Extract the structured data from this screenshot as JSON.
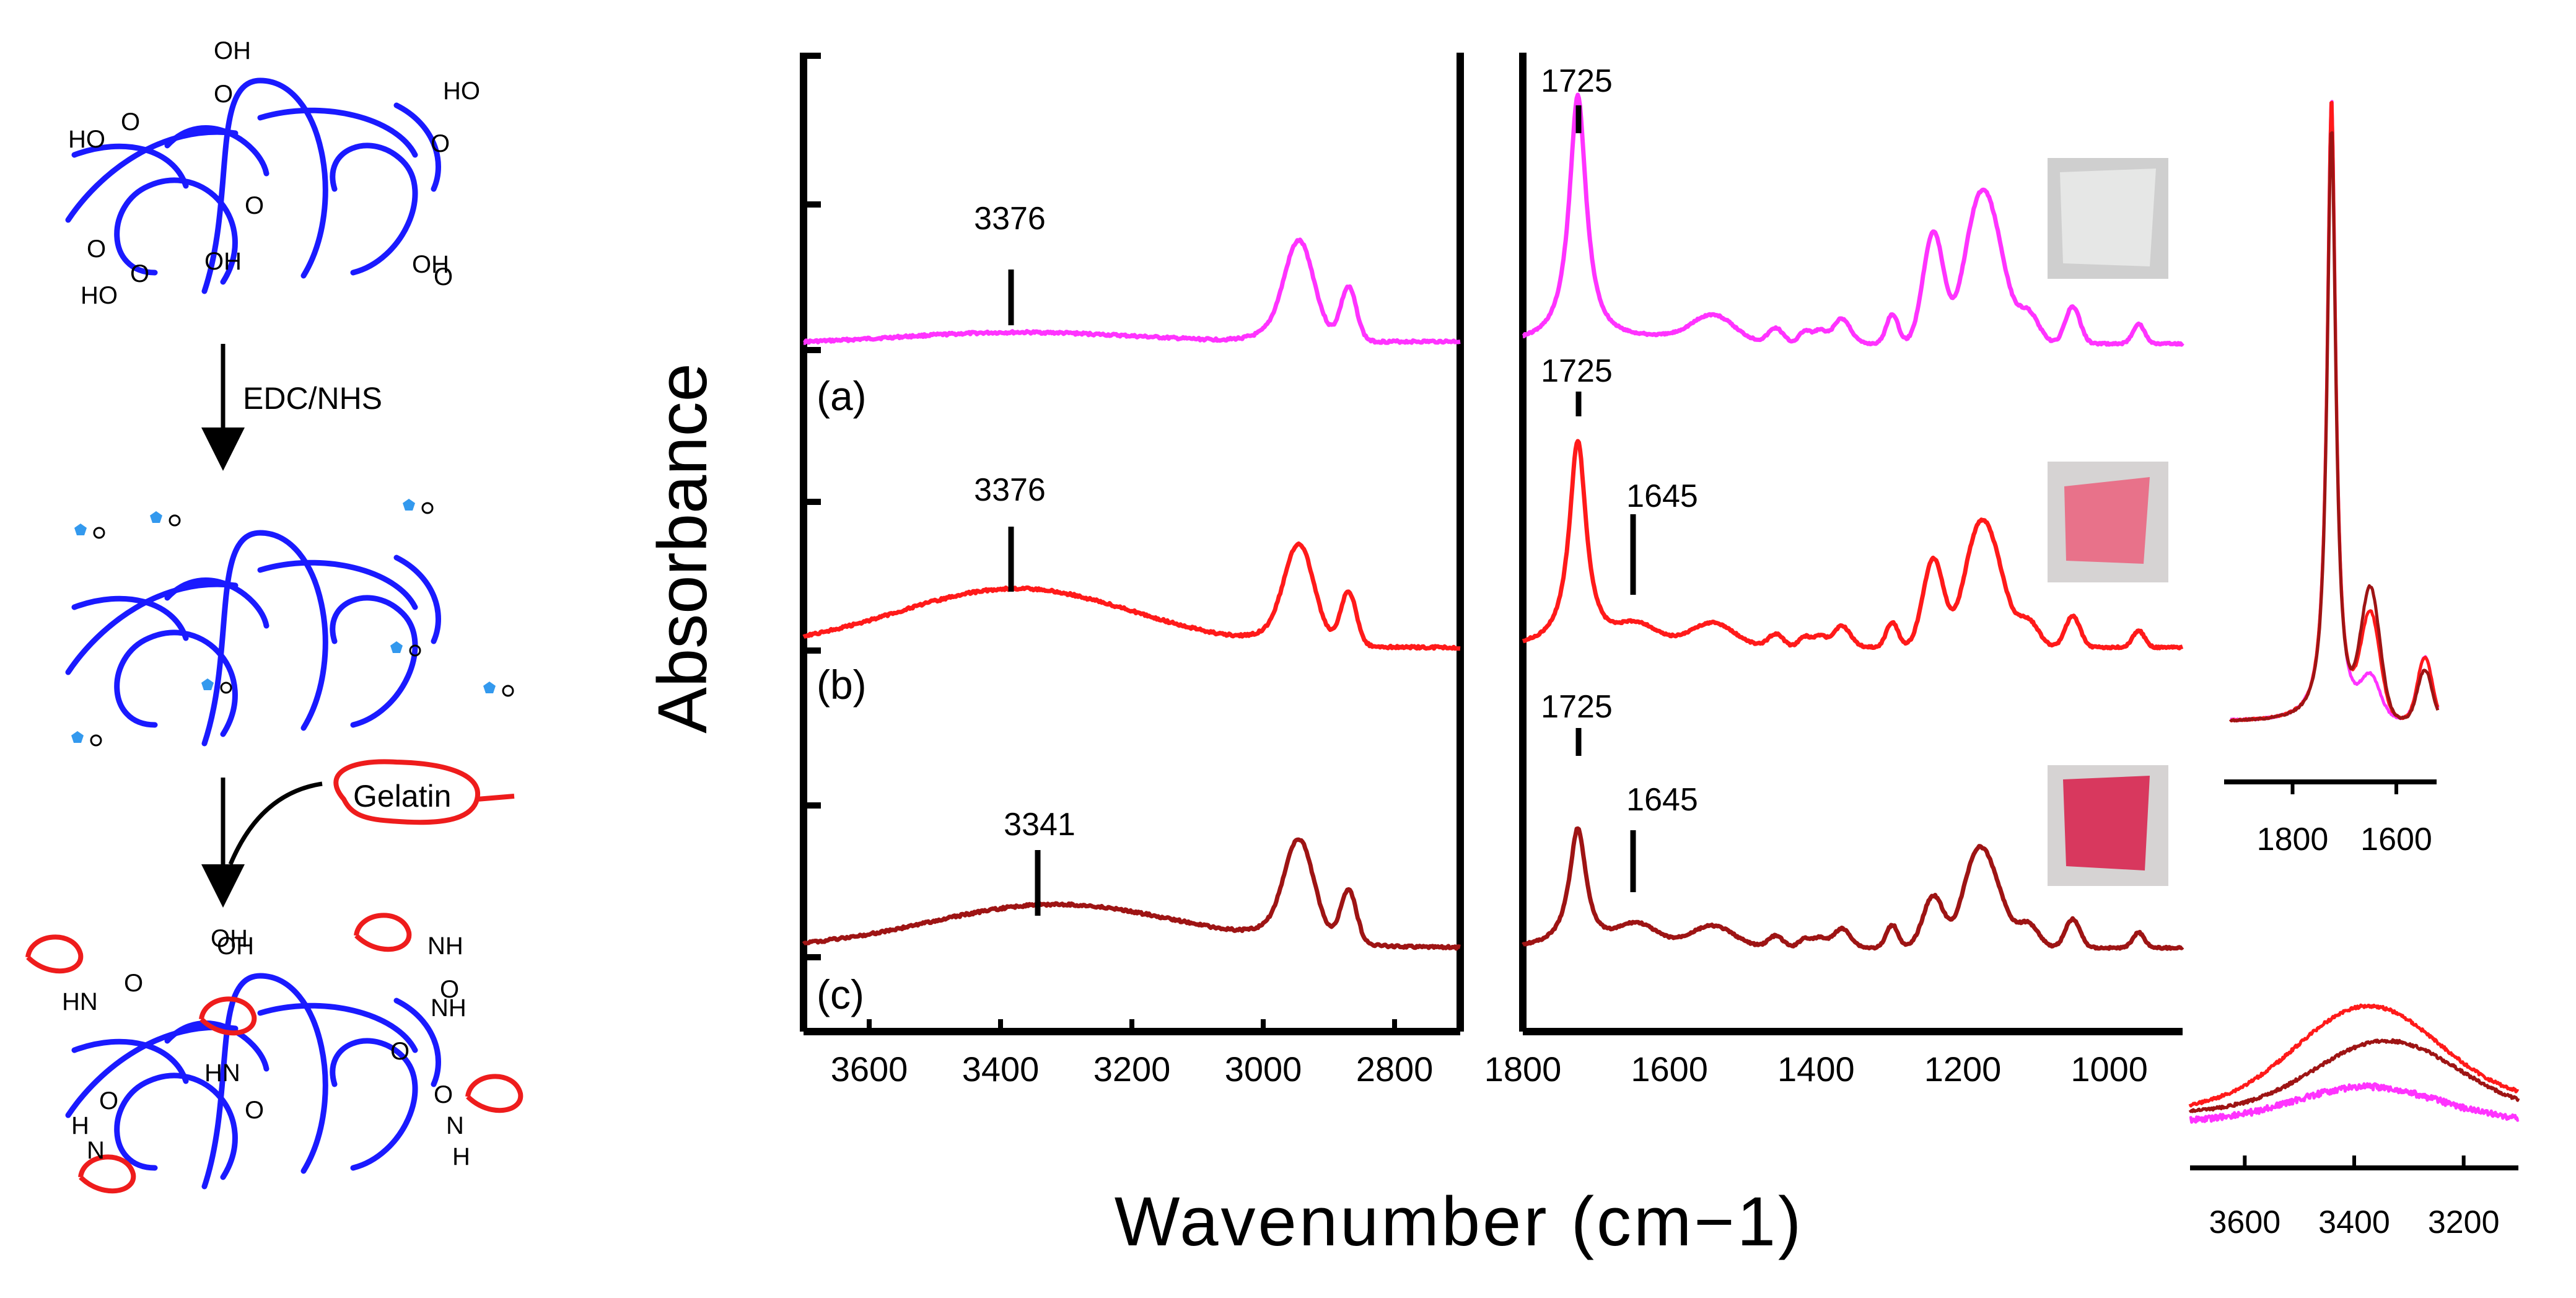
{
  "colors": {
    "trace_a": "#ff33ff",
    "trace_b": "#ff1a1a",
    "trace_c": "#9e1414",
    "polymer": "#1a1aff",
    "gelatin": "#ee1c1c",
    "ester_group": "#3399ee"
  },
  "scheme": {
    "step1_label": "EDC/NHS",
    "step2_label": "Gelatin",
    "group_labels": {
      "carboxyl": [
        "HO",
        "O",
        "OH",
        "O",
        "HO",
        "O",
        "O",
        "OH",
        "O",
        "HO",
        "O",
        "OH",
        "O",
        "OH"
      ],
      "amide": [
        "HN",
        "O",
        "NH",
        "O",
        "HN",
        "O",
        "NH",
        "O",
        "H",
        "N",
        "O",
        "N",
        "H",
        "O",
        "OH"
      ]
    }
  },
  "chart_data": [
    {
      "id": "left-panel",
      "type": "line",
      "title": "",
      "xlabel": "Wavenumber (cm−1)",
      "ylabel": "Absorbance",
      "x_range": [
        3700,
        2700
      ],
      "x_reversed": true,
      "xticks": [
        3600,
        3400,
        3200,
        3000,
        2800
      ],
      "y_ticks_count": 6,
      "series": [
        {
          "name": "(a)",
          "color": "#ff33ff",
          "peak_label": "3376",
          "peak_x": 3376
        },
        {
          "name": "(b)",
          "color": "#ff1a1a",
          "peak_label": "3376",
          "peak_x": 3376
        },
        {
          "name": "(c)",
          "color": "#9e1414",
          "peak_label": "3341",
          "peak_x": 3341
        }
      ]
    },
    {
      "id": "right-panel",
      "type": "line",
      "x_range": [
        1800,
        900
      ],
      "x_reversed": true,
      "xticks": [
        1800,
        1600,
        1400,
        1200,
        1000
      ],
      "series": [
        {
          "name": "(a)",
          "color": "#ff33ff",
          "peak_labels": [
            "1725"
          ],
          "inset_photo": "clear film"
        },
        {
          "name": "(b)",
          "color": "#ff1a1a",
          "peak_labels": [
            "1725",
            "1645"
          ],
          "inset_photo": "light red film"
        },
        {
          "name": "(c)",
          "color": "#9e1414",
          "peak_labels": [
            "1725",
            "1645"
          ],
          "inset_photo": "red film"
        }
      ]
    },
    {
      "id": "inset-top",
      "type": "line",
      "x_range": [
        1920,
        1520
      ],
      "x_reversed": true,
      "xticks": [
        1800,
        1600
      ],
      "series": [
        {
          "name": "(a)",
          "color": "#ff33ff"
        },
        {
          "name": "(b)",
          "color": "#ff1a1a"
        },
        {
          "name": "(c)",
          "color": "#9e1414"
        }
      ]
    },
    {
      "id": "inset-bottom",
      "type": "line",
      "x_range": [
        3700,
        3100
      ],
      "x_reversed": true,
      "xticks": [
        3600,
        3400,
        3200
      ],
      "series": [
        {
          "name": "(a)",
          "color": "#ff33ff"
        },
        {
          "name": "(b)",
          "color": "#ff1a1a"
        },
        {
          "name": "(c)",
          "color": "#9e1414"
        }
      ]
    }
  ]
}
